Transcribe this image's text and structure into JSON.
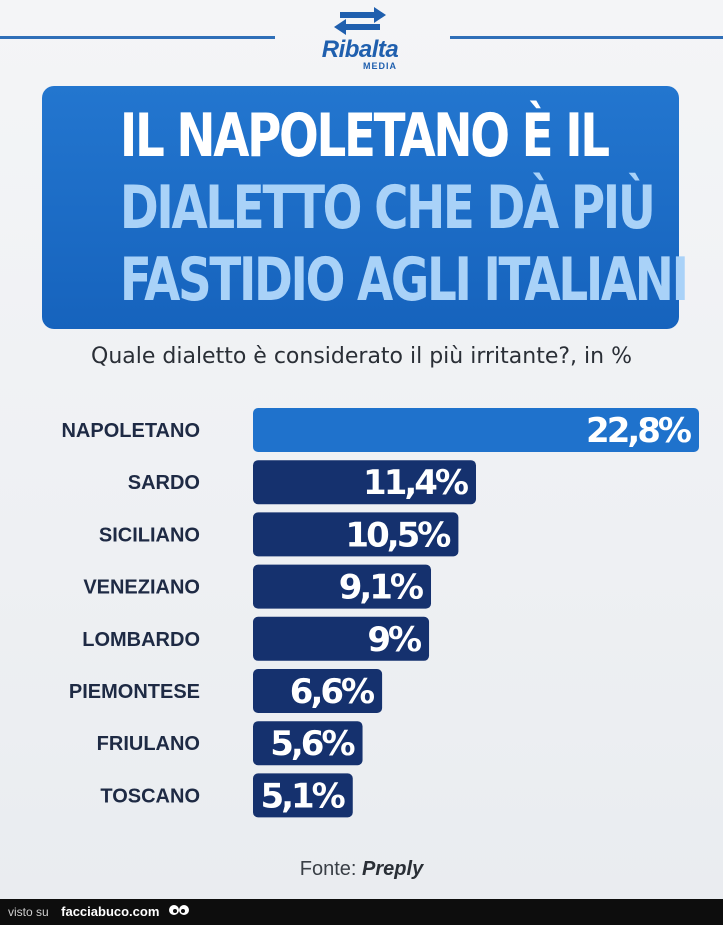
{
  "brand": {
    "name": "Ribalta",
    "sub": "MEDIA",
    "color": "#1f5fae"
  },
  "headline": {
    "line1": "IL NAPOLETANO È IL",
    "line2": "DIALETTO CHE DÀ PIÙ",
    "line3": "FASTIDIO AGLI ITALIANI"
  },
  "subtitle": "Quale dialetto è considerato il più irritante?, in %",
  "chart_data": {
    "type": "bar",
    "orientation": "horizontal",
    "categories": [
      "NAPOLETANO",
      "SARDO",
      "SICILIANO",
      "VENEZIANO",
      "LOMBARDO",
      "PIEMONTESE",
      "FRIULANO",
      "TOSCANO"
    ],
    "values": [
      22.8,
      11.4,
      10.5,
      9.1,
      9,
      6.6,
      5.6,
      5.1
    ],
    "value_labels": [
      "22,8%",
      "11,4%",
      "10,5%",
      "9,1%",
      "9%",
      "6,6%",
      "5,6%",
      "5,1%"
    ],
    "unit": "%",
    "grid": false,
    "colors": {
      "highlight": "#1f72cc",
      "default": "#15316e"
    }
  },
  "source": {
    "prefix": "Fonte:",
    "name": "Preply"
  },
  "footer": {
    "prefix": "visto su",
    "site": "facciabuco.com"
  }
}
